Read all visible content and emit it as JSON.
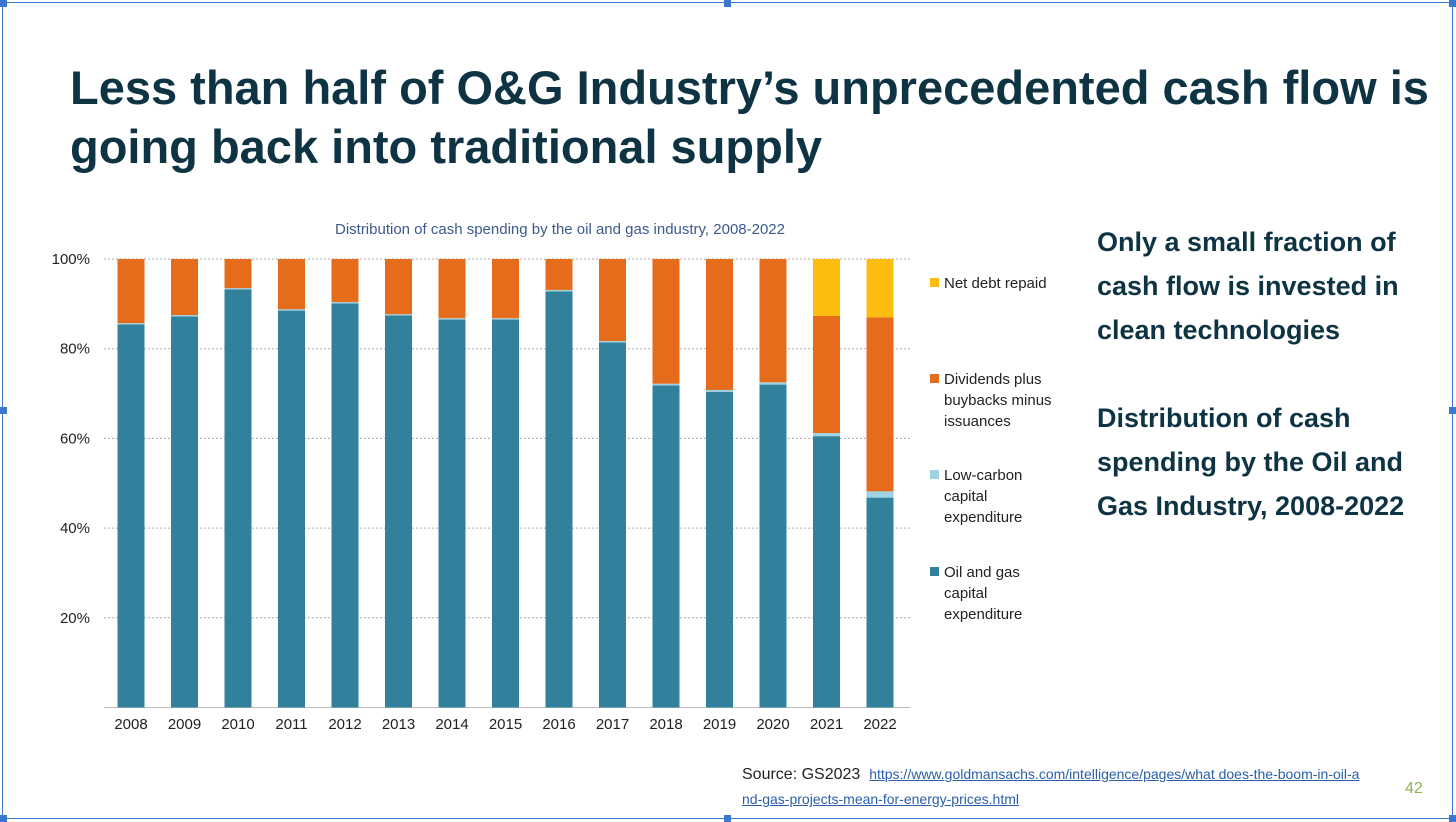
{
  "slide": {
    "title": "Less than half of O&G Industry’s unprecedented cash flow is going back into traditional supply",
    "side_text": [
      "Only a small fraction of cash flow is invested in clean technologies",
      "Distribution of cash spending by the Oil and Gas Industry, 2008-2022"
    ],
    "source_label": "Source: GS2023",
    "source_link": "https://www.goldmansachs.com/intelligence/pages/what does-the-boom-in-oil-and-gas-projects-mean-for-energy-prices.html",
    "page_number": "42"
  },
  "chart_data": {
    "type": "bar",
    "stacked": true,
    "title": "Distribution of cash spending by the oil and gas industry, 2008-2022",
    "xlabel": "",
    "ylabel": "",
    "ylim": [
      0,
      100
    ],
    "yticks": [
      "20%",
      "40%",
      "60%",
      "80%",
      "100%"
    ],
    "categories": [
      "2008",
      "2009",
      "2010",
      "2011",
      "2012",
      "2013",
      "2014",
      "2015",
      "2016",
      "2017",
      "2018",
      "2019",
      "2020",
      "2021",
      "2022"
    ],
    "series": [
      {
        "name": "Oil and gas capital expenditure",
        "color": "#31819c",
        "values": [
          85.4,
          87.2,
          93.2,
          88.5,
          90.1,
          87.4,
          86.5,
          86.5,
          92.8,
          81.4,
          71.8,
          70.4,
          72.0,
          60.5,
          46.8
        ]
      },
      {
        "name": "Low-carbon capital expenditure",
        "color": "#9fd3e3",
        "values": [
          0.3,
          0.3,
          0.3,
          0.3,
          0.3,
          0.3,
          0.3,
          0.3,
          0.3,
          0.3,
          0.4,
          0.4,
          0.5,
          0.7,
          1.4
        ]
      },
      {
        "name": "Dividends plus buybacks minus issuances",
        "color": "#e46c1a",
        "values": [
          14.3,
          12.5,
          6.5,
          11.2,
          9.6,
          12.3,
          13.2,
          13.2,
          6.9,
          18.3,
          27.8,
          29.2,
          27.5,
          26.1,
          38.8
        ]
      },
      {
        "name": "Net debt repaid",
        "color": "#fdbd10",
        "values": [
          0,
          0,
          0,
          0,
          0,
          0,
          0,
          0,
          0,
          0,
          0,
          0,
          0,
          12.7,
          13.0
        ]
      }
    ],
    "legend": [
      "Net debt repaid",
      "Dividends plus buybacks minus issuances",
      "Low-carbon capital expenditure",
      "Oil and gas capital expenditure"
    ],
    "legend_position": "right",
    "grid": true
  }
}
